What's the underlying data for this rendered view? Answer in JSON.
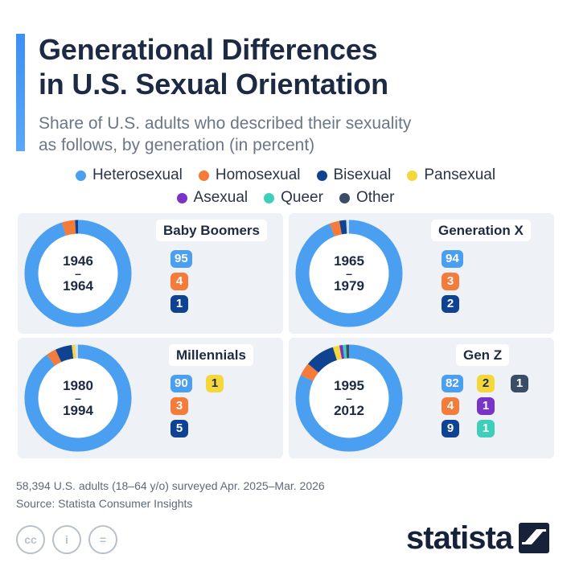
{
  "title_line1": "Generational Differences",
  "title_line2": "in U.S. Sexual Orientation",
  "subtitle_line1": "Share of U.S. adults who described their sexuality",
  "subtitle_line2": "as follows, by generation (in percent)",
  "colors": {
    "accent": "#3d8ff3",
    "ring_track": "#cfe0f6",
    "Heterosexual": "#4a9ff0",
    "Homosexual": "#f47b3a",
    "Bisexual": "#0f4392",
    "Pansexual": "#f6d73b",
    "Asexual": "#7a33c8",
    "Queer": "#3dcfb9",
    "Other": "#3b4d66"
  },
  "chart_data": {
    "type": "pie",
    "categories": [
      "Heterosexual",
      "Homosexual",
      "Bisexual",
      "Pansexual",
      "Asexual",
      "Queer",
      "Other"
    ],
    "legend_placement": "top-center",
    "panels": [
      {
        "name": "Baby Boomers",
        "years_start": "1946",
        "years_end": "1964",
        "dash": "–",
        "values": {
          "Heterosexual": 95,
          "Homosexual": 4,
          "Bisexual": 1
        }
      },
      {
        "name": "Generation X",
        "years_start": "1965",
        "years_end": "1979",
        "dash": "–",
        "values": {
          "Heterosexual": 94,
          "Homosexual": 3,
          "Bisexual": 2
        }
      },
      {
        "name": "Millennials",
        "years_start": "1980",
        "years_end": "1994",
        "dash": "–",
        "values": {
          "Heterosexual": 90,
          "Homosexual": 3,
          "Bisexual": 5,
          "Pansexual": 1
        }
      },
      {
        "name": "Gen Z",
        "years_start": "1995",
        "years_end": "2012",
        "dash": "–",
        "values": {
          "Heterosexual": 82,
          "Homosexual": 4,
          "Bisexual": 9,
          "Pansexual": 2,
          "Asexual": 1,
          "Queer": 1,
          "Other": 1
        }
      }
    ]
  },
  "footer_line1": "58,394 U.S. adults (18–64 y/o) surveyed Apr. 2025–Mar. 2026",
  "footer_line2": "Source: Statista Consumer Insights",
  "license_icons": [
    {
      "name": "cc-icon",
      "glyph": "cc"
    },
    {
      "name": "attribution-icon",
      "glyph": "i"
    },
    {
      "name": "no-derivatives-icon",
      "glyph": "="
    }
  ],
  "logo_text": "statista"
}
